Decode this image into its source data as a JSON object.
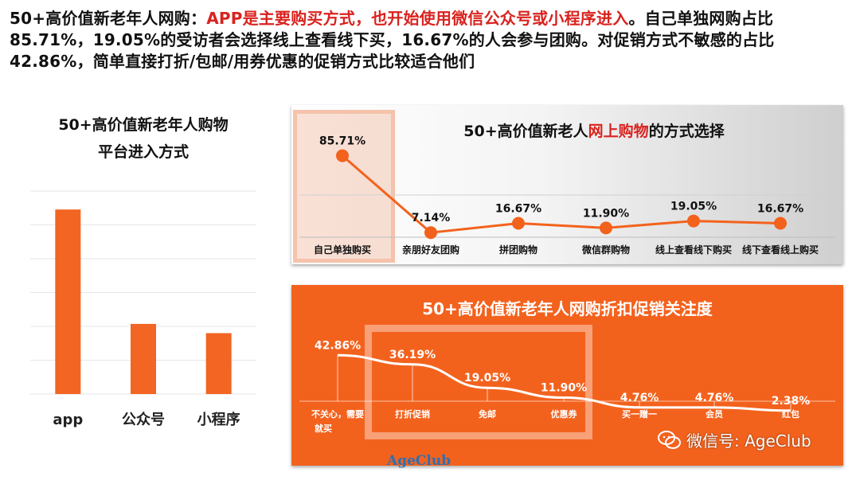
{
  "headline": {
    "part1": "50+高价值新老年人网购：",
    "part2": "APP是主要购买方式，也开始使用微信公众号或小程序进入",
    "part3": "。自己单独网购占比85.71%，19.05%的受访者会选择线上查看线下买，16.67%的人会参与团购。对促销方式不敏感的占比42.86%，简单直接打折/包邮/用券优惠的促销方式比较适合他们"
  },
  "colors": {
    "accent": "#f3621d",
    "red": "#d9231f",
    "bar": "#f26522"
  },
  "chart_data": [
    {
      "type": "bar",
      "title_line1": "50+高价值新老年人购物",
      "title_line2": "平台进入方式",
      "categories": [
        "app",
        "公众号",
        "小程序"
      ],
      "values": [
        100,
        38,
        33
      ],
      "ylim": [
        0,
        110
      ],
      "grid": true
    },
    {
      "type": "line",
      "title_pre": "50+高价值新老人",
      "title_red": "网上购物",
      "title_post": "的方式选择",
      "categories": [
        "自己单独购买",
        "亲朋好友团购",
        "拼团购物",
        "微信群购物",
        "线上查看线下购买",
        "线下查看线上购买"
      ],
      "values": [
        85.71,
        7.14,
        16.67,
        11.9,
        19.05,
        16.67
      ],
      "labels": [
        "85.71%",
        "7.14%",
        "16.67%",
        "11.90%",
        "19.05%",
        "16.67%"
      ],
      "ylim": [
        0,
        100
      ]
    },
    {
      "type": "line",
      "title": "50+高价值新老年人网购折扣促销关注度",
      "categories": [
        "不关心，需要就买",
        "打折促销",
        "免邮",
        "优惠券",
        "买一赠一",
        "会员",
        "红包"
      ],
      "values": [
        42.86,
        36.19,
        19.05,
        11.9,
        4.76,
        4.76,
        2.38
      ],
      "labels": [
        "42.86%",
        "36.19%",
        "19.05%",
        "11.90%",
        "4.76%",
        "4.76%",
        "2.38%"
      ],
      "ylim": [
        0,
        50
      ]
    }
  ],
  "watermark": {
    "label": "微信号: AgeClub",
    "icon": "wechat-icon"
  },
  "logo": {
    "text": "AgeClub"
  }
}
